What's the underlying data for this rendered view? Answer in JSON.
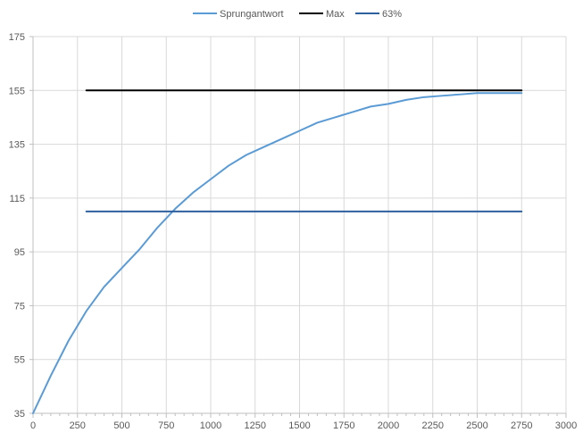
{
  "chart_data": {
    "type": "line",
    "title": "",
    "xlabel": "",
    "ylabel": "",
    "xlim": [
      0,
      3000
    ],
    "ylim": [
      35,
      175
    ],
    "x_ticks": [
      0,
      250,
      500,
      750,
      1000,
      1250,
      1500,
      1750,
      2000,
      2250,
      2500,
      2750,
      3000
    ],
    "y_ticks": [
      35,
      55,
      75,
      95,
      115,
      135,
      155,
      175
    ],
    "grid": "vertical and horizontal",
    "legend_position": "top",
    "series": [
      {
        "name": "Sprungantwort",
        "color": "#5b9bd5",
        "x": [
          0,
          100,
          200,
          300,
          400,
          500,
          600,
          700,
          800,
          900,
          1000,
          1100,
          1200,
          1300,
          1400,
          1500,
          1600,
          1700,
          1800,
          1900,
          2000,
          2100,
          2200,
          2300,
          2400,
          2500,
          2600,
          2700,
          2750
        ],
        "y": [
          35,
          49,
          62,
          73,
          82,
          89,
          96,
          104,
          111,
          117,
          122,
          127,
          131,
          134,
          137,
          140,
          143,
          145,
          147,
          149,
          150,
          151.5,
          152.5,
          153,
          153.5,
          154,
          154,
          154,
          154
        ]
      },
      {
        "name": "Max",
        "color": "#000000",
        "x": [
          300,
          2750
        ],
        "y": [
          155,
          155
        ]
      },
      {
        "name": "63%",
        "color": "#2e5f9e",
        "x": [
          300,
          2750
        ],
        "y": [
          110,
          110
        ]
      }
    ]
  }
}
